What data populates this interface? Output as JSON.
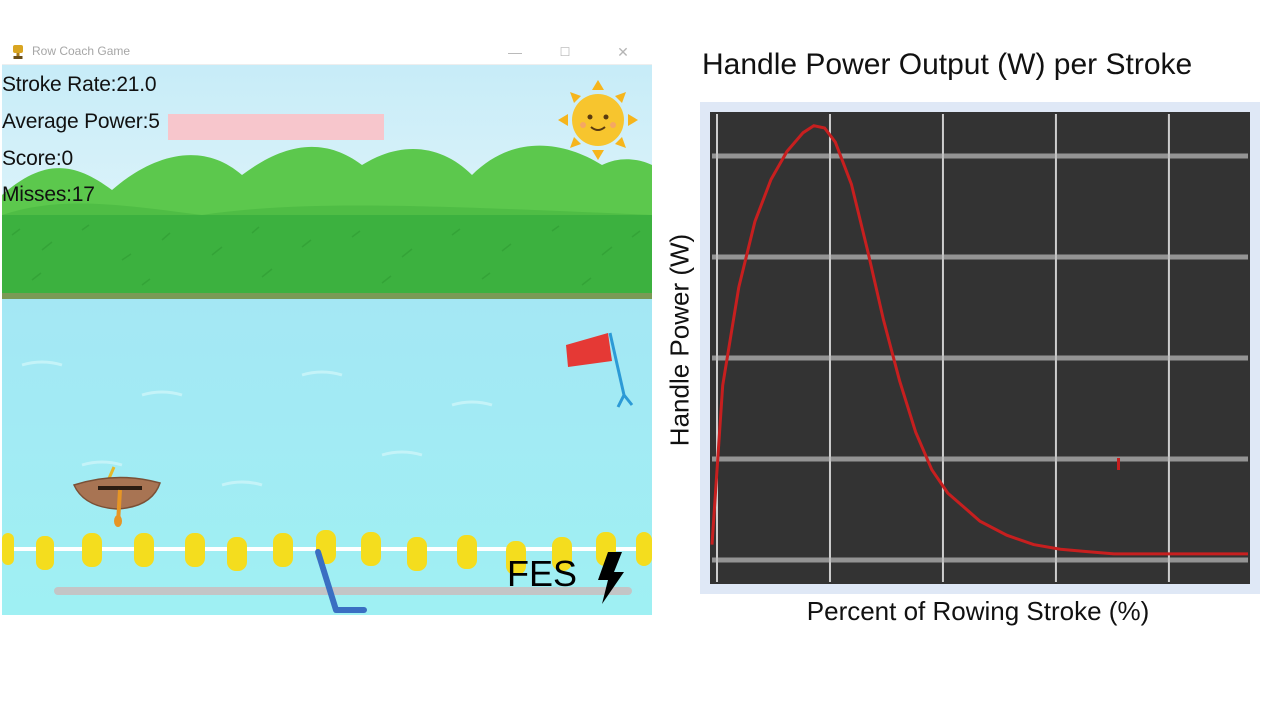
{
  "window": {
    "title": "Row Coach Game",
    "app_icon": "trophy-icon",
    "controls": {
      "minimize": "—",
      "maximize": "☐",
      "close": "✕"
    }
  },
  "hud": {
    "stroke_rate": "Stroke Rate:21.0",
    "average_power": "Average Power:5",
    "score": "Score:0",
    "misses": "Misses:17"
  },
  "fes": {
    "label": "FES",
    "icon": "lightning-bolt-icon"
  },
  "scene_icons": [
    "sun-icon",
    "flag-icon",
    "rowboat-icon",
    "oar-handle-icon",
    "lane-buoys"
  ],
  "colors": {
    "sky": "#bfe9f7",
    "water": "#99e6f1",
    "grass": "#3fb541",
    "buoy": "#f4dd1e",
    "flag": "#e53935",
    "chart_bg": "#333333",
    "curve": "#cc1f1f"
  },
  "chart": {
    "title": "Handle Power Output (W) per Stroke",
    "ylabel": "Handle Power (W)",
    "xlabel": "Percent of Rowing Stroke (%)"
  },
  "chart_data": {
    "type": "line",
    "title": "Handle Power Output (W) per Stroke",
    "xlabel": "Percent of Rowing Stroke (%)",
    "ylabel": "Handle Power (W)",
    "grid": true,
    "xlim": [
      0,
      100
    ],
    "ylim": [
      0,
      100
    ],
    "series": [
      {
        "x": [
          0,
          2,
          5,
          8,
          11,
          14,
          17,
          19,
          21,
          23,
          26,
          29,
          32,
          35,
          38,
          41,
          44,
          47,
          50,
          55,
          60,
          65,
          70,
          75,
          80,
          85,
          90,
          95,
          100
        ],
        "y": [
          8,
          42,
          63,
          77,
          86,
          92,
          96,
          97.5,
          97,
          94,
          85,
          71,
          56,
          43,
          32,
          24,
          19,
          16,
          13,
          10,
          8,
          7,
          6.5,
          6,
          6,
          6,
          6,
          6,
          6
        ]
      }
    ]
  }
}
